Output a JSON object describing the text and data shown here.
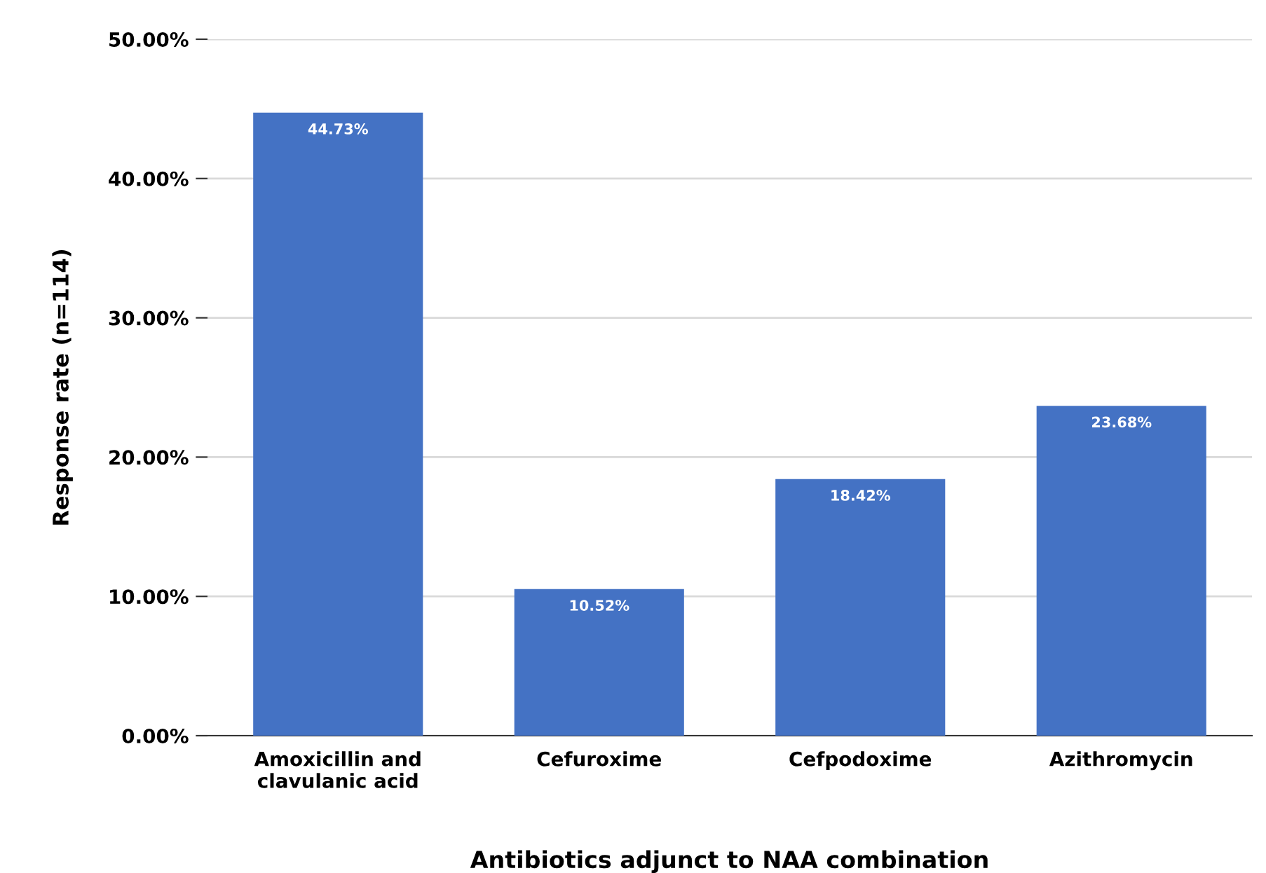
{
  "chart_data": {
    "type": "bar",
    "xlabel": "Antibiotics adjunct to NAA combination",
    "ylabel": "Response rate (n=114)",
    "categories": [
      "Amoxicillin and\nclavulanic acid",
      "Cefuroxime",
      "Cefpodoxime",
      "Azithromycin"
    ],
    "values": [
      44.73,
      10.52,
      18.42,
      23.68
    ],
    "value_labels": [
      "44.73%",
      "10.52%",
      "18.42%",
      "23.68%"
    ],
    "color": "#4472c4",
    "ylim": [
      0,
      50
    ],
    "yticks": [
      {
        "value": 0,
        "label": "0.00%"
      },
      {
        "value": 10,
        "label": "10.00%"
      },
      {
        "value": 20,
        "label": "20.00%"
      },
      {
        "value": 30,
        "label": "30.00%"
      },
      {
        "value": 40,
        "label": "40.00%"
      },
      {
        "value": 50,
        "label": "50.00%"
      }
    ],
    "grid": "y",
    "legend": false
  }
}
